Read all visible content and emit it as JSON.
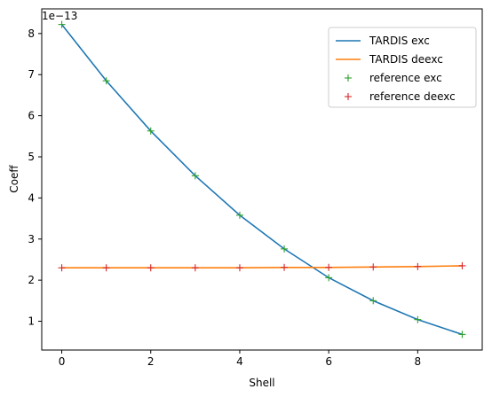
{
  "chart_data": {
    "type": "line",
    "xlabel": "Shell",
    "ylabel": "Coeff",
    "offset_text": "1e−13",
    "xlim": [
      -0.45,
      9.45
    ],
    "ylim": [
      0.3,
      8.6
    ],
    "x_ticks": [
      0,
      2,
      4,
      6,
      8
    ],
    "y_ticks": [
      1,
      2,
      3,
      4,
      5,
      6,
      7,
      8
    ],
    "grid": false,
    "legend_position": "top-right",
    "x": [
      0,
      1,
      2,
      3,
      4,
      5,
      6,
      7,
      8,
      9
    ],
    "series": [
      {
        "name": "TARDIS exc",
        "style": "line",
        "color": "#1f77b4",
        "values": [
          8.22,
          6.85,
          5.63,
          4.54,
          3.58,
          2.76,
          2.06,
          1.5,
          1.04,
          0.68
        ]
      },
      {
        "name": "TARDIS deexc",
        "style": "line",
        "color": "#ff7f0e",
        "values": [
          2.3,
          2.3,
          2.3,
          2.3,
          2.3,
          2.31,
          2.31,
          2.32,
          2.33,
          2.35
        ]
      },
      {
        "name": "reference exc",
        "style": "marker",
        "color": "#2ca02c",
        "values": [
          8.22,
          6.85,
          5.63,
          4.54,
          3.58,
          2.76,
          2.06,
          1.5,
          1.04,
          0.68
        ]
      },
      {
        "name": "reference deexc",
        "style": "marker",
        "color": "#d62728",
        "values": [
          2.3,
          2.3,
          2.3,
          2.3,
          2.3,
          2.31,
          2.31,
          2.32,
          2.33,
          2.35
        ]
      }
    ]
  }
}
